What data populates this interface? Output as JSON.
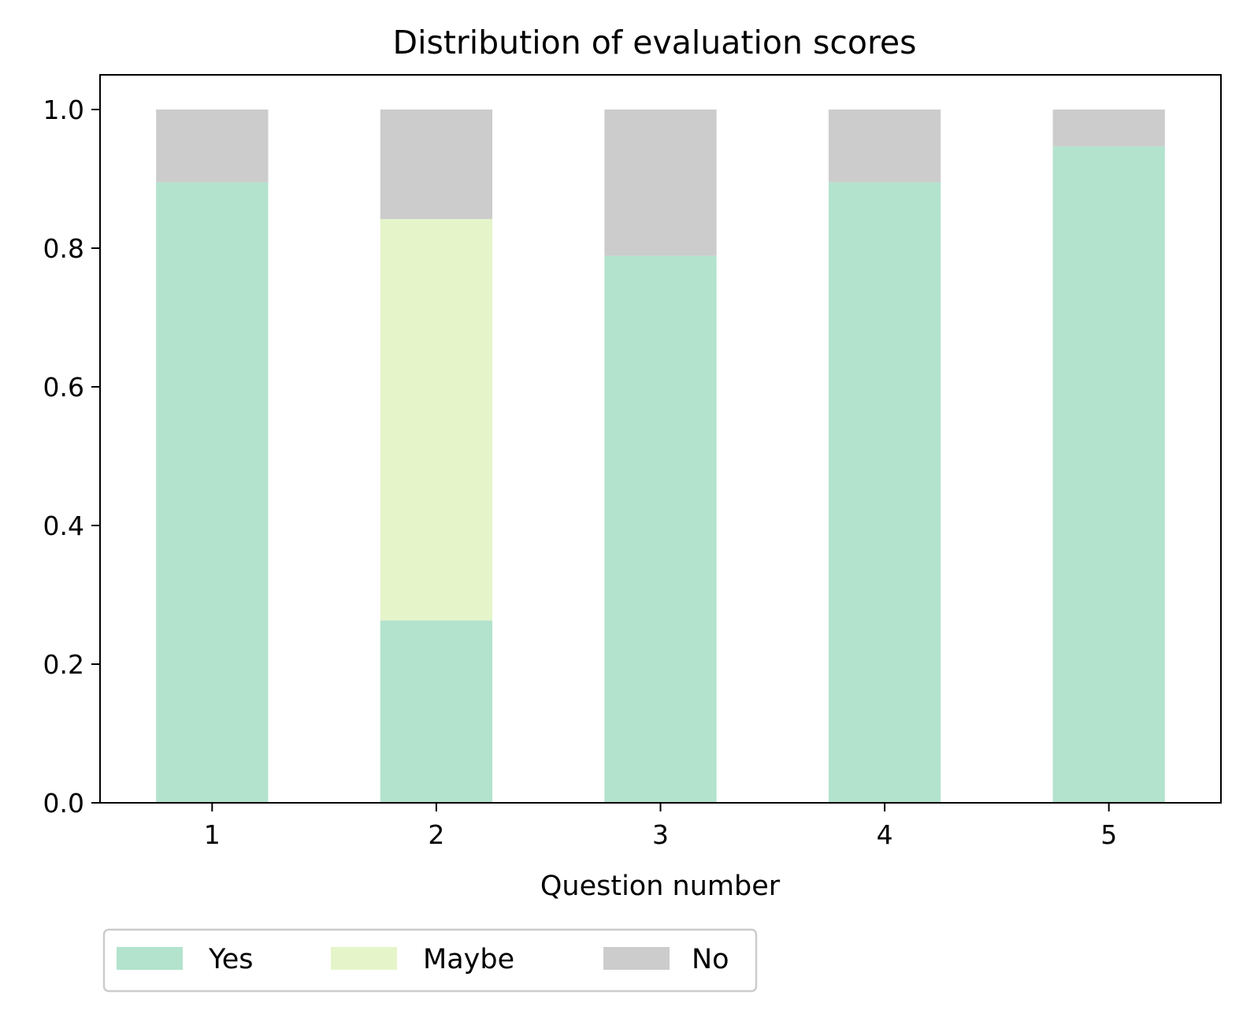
{
  "chart_data": {
    "type": "bar",
    "stacked": true,
    "title": "Distribution of evaluation scores",
    "xlabel": "Question number",
    "ylabel": "",
    "categories": [
      "1",
      "2",
      "3",
      "4",
      "5"
    ],
    "ylim": [
      0,
      1.05
    ],
    "yticks": [
      "0.0",
      "0.2",
      "0.4",
      "0.6",
      "0.8",
      "1.0"
    ],
    "grid": false,
    "legend_position": "bottom-left, below axes",
    "series": [
      {
        "name": "Yes",
        "color": "#b3e3cd",
        "values": [
          0.895,
          0.263,
          0.789,
          0.895,
          0.947
        ]
      },
      {
        "name": "Maybe",
        "color": "#e5f5c9",
        "values": [
          0.0,
          0.579,
          0.0,
          0.0,
          0.0
        ]
      },
      {
        "name": "No",
        "color": "#cccccc",
        "values": [
          0.105,
          0.158,
          0.211,
          0.105,
          0.053
        ]
      }
    ]
  }
}
